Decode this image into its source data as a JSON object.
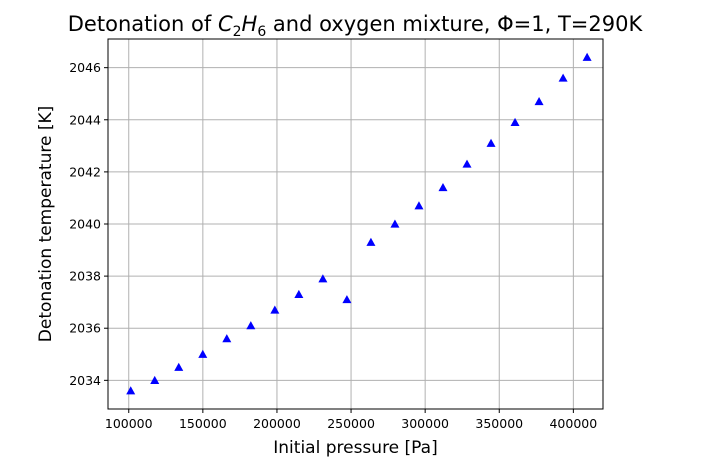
{
  "chart_data": {
    "type": "scatter",
    "title": {
      "prefix": "Detonation of ",
      "formula_main_1": "C",
      "formula_sub_1": "2",
      "formula_main_2": "H",
      "formula_sub_2": "6",
      "suffix": " and oxygen mixture, Φ=1, T=290K"
    },
    "xlabel": "Initial pressure [Pa]",
    "ylabel": "Detonation temperature [K]",
    "xlim": [
      86000,
      420000
    ],
    "ylim": [
      2032.9,
      2047.1
    ],
    "xticks": [
      100000,
      150000,
      200000,
      250000,
      300000,
      350000,
      400000
    ],
    "yticks": [
      2034,
      2036,
      2038,
      2040,
      2042,
      2044,
      2046
    ],
    "grid": true,
    "marker": "triangle-up",
    "marker_color": "#0000ff",
    "x": [
      101325,
      117533,
      133741,
      149949,
      166157,
      182365,
      198573,
      214781,
      230989,
      247197,
      263405,
      279613,
      295821,
      312029,
      328237,
      344445,
      360653,
      376861,
      393069,
      409277
    ],
    "y": [
      2033.6,
      2034.0,
      2034.5,
      2035.0,
      2035.6,
      2036.1,
      2036.7,
      2037.3,
      2037.9,
      2037.1,
      2039.3,
      2040.0,
      2040.7,
      2041.4,
      2042.3,
      2043.1,
      2043.9,
      2044.7,
      2045.6,
      2046.4
    ]
  }
}
